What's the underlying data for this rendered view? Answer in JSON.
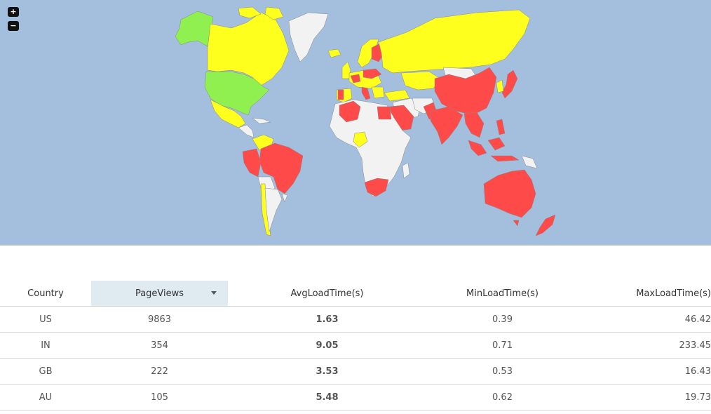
{
  "map": {
    "zoom_in_label": "+",
    "zoom_out_label": "−",
    "colors": {
      "ocean": "#a4bfde",
      "no_data": "#f2f2f2",
      "fast": "#8ff04f",
      "medium": "#ffff1e",
      "slow": "#ff4a4a"
    }
  },
  "table": {
    "headers": {
      "country": "Country",
      "pageviews": "PageViews",
      "avg": "AvgLoadTime(s)",
      "min": "MinLoadTime(s)",
      "max": "MaxLoadTime(s)"
    },
    "rows": [
      {
        "country": "US",
        "pageviews": "9863",
        "avg": "1.63",
        "min": "0.39",
        "max": "46.42",
        "avg_status": "good"
      },
      {
        "country": "IN",
        "pageviews": "354",
        "avg": "9.05",
        "min": "0.71",
        "max": "233.45",
        "avg_status": "bad"
      },
      {
        "country": "GB",
        "pageviews": "222",
        "avg": "3.53",
        "min": "0.53",
        "max": "16.43",
        "avg_status": "mid"
      },
      {
        "country": "AU",
        "pageviews": "105",
        "avg": "5.48",
        "min": "0.62",
        "max": "19.73",
        "avg_status": "bad"
      }
    ]
  }
}
